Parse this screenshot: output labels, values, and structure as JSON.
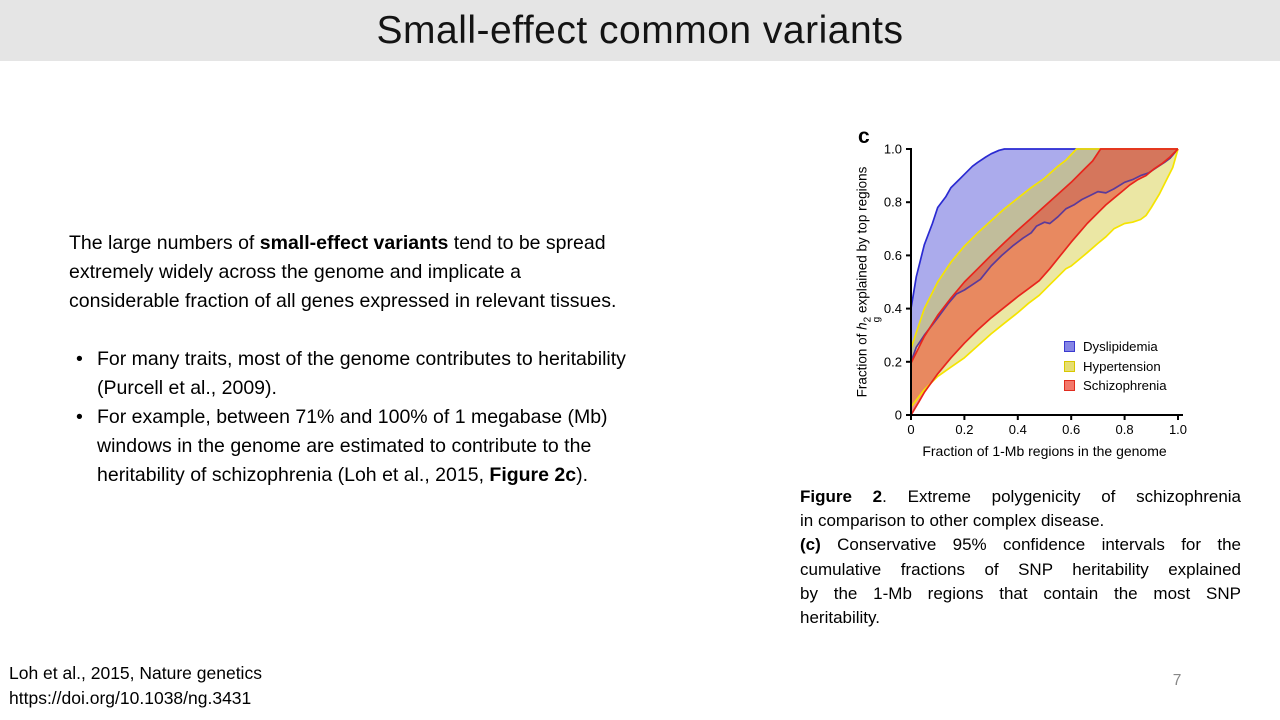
{
  "slide": {
    "title": "Small-effect common variants",
    "page_number": "7",
    "bullet_char": "•",
    "paragraph_lines": [
      [
        {
          "t": "The large numbers of "
        },
        {
          "t": "small-effect variants",
          "b": true
        },
        {
          "t": " tend to be spread"
        }
      ],
      [
        {
          "t": "extremely widely across the genome and implicate a"
        }
      ],
      [
        {
          "t": "considerable fraction of all genes expressed in relevant tissues."
        }
      ]
    ],
    "bullets": [
      {
        "lines": [
          [
            {
              "t": "For many traits, most of the genome contributes to heritability"
            }
          ],
          [
            {
              "t": "(Purcell et al., 2009)."
            }
          ]
        ]
      },
      {
        "lines": [
          [
            {
              "t": "For example, between 71% and 100% of 1 megabase (Mb)"
            }
          ],
          [
            {
              "t": "windows in the genome are estimated to contribute to the"
            }
          ],
          [
            {
              "t": "heritability of schizophrenia (Loh et al., 2015, "
            },
            {
              "t": "Figure 2c",
              "b": true
            },
            {
              "t": ")."
            }
          ]
        ]
      }
    ],
    "caption_lines": [
      {
        "justify": true,
        "segments": [
          {
            "t": "Figure 2",
            "b": true
          },
          {
            "t": ". Extreme polygenicity of schizophrenia"
          }
        ]
      },
      {
        "justify": false,
        "segments": [
          {
            "t": "in comparison to other complex disease."
          }
        ]
      },
      {
        "justify": true,
        "segments": [
          {
            "t": "(c)",
            "b": true
          },
          {
            "t": " Conservative 95% confidence intervals for the"
          }
        ]
      },
      {
        "justify": true,
        "segments": [
          {
            "t": "cumulative fractions of SNP heritability explained"
          }
        ]
      },
      {
        "justify": true,
        "segments": [
          {
            "t": "by the 1-Mb regions that contain the most SNP"
          }
        ]
      },
      {
        "justify": false,
        "segments": [
          {
            "t": "heritability."
          }
        ]
      }
    ],
    "citation_lines": [
      "Loh et al., 2015, Nature genetics",
      "https://doi.org/10.1038/ng.3431"
    ]
  },
  "chart_data": {
    "type": "area",
    "panel_label": "c",
    "title": "Conservative 95% confidence intervals for cumulative fractions of SNP heritability explained by top 1-Mb regions",
    "xlabel": "Fraction of 1-Mb regions in the genome",
    "ylabel_parts": {
      "prefix": "Fraction of ",
      "h": "h",
      "sup": "2",
      "sub": "g",
      "suffix": " explained by top regions"
    },
    "xlim": [
      0,
      1
    ],
    "ylim": [
      0,
      1
    ],
    "grid": false,
    "legend_position": "inside-right",
    "xtick_vals": [
      0,
      0.2,
      0.4,
      0.6,
      0.8,
      1.0
    ],
    "ytick_vals": [
      0,
      0.2,
      0.4,
      0.6,
      0.8,
      1.0
    ],
    "xticks": [
      "0",
      "0.2",
      "0.4",
      "0.6",
      "0.8",
      "1.0"
    ],
    "yticks": [
      "0",
      "0.2",
      "0.4",
      "0.6",
      "0.8",
      "1.0"
    ],
    "axis_color": "#000000",
    "legend": [
      {
        "label": "Dyslipidemia",
        "fill": "#8585e5",
        "border": "#3a3ad0"
      },
      {
        "label": "Hypertension",
        "fill": "#e6de72",
        "border": "#d8c800"
      },
      {
        "label": "Schizophrenia",
        "fill": "#f3786b",
        "border": "#e02c1e"
      }
    ],
    "bands": [
      {
        "name": "Dyslipidemia",
        "fill": "#6666dd",
        "opacity": 0.55,
        "line_upper": "#2a2ad2",
        "line_lower": "#5c3a99",
        "upper": [
          [
            0,
            0.4
          ],
          [
            0.02,
            0.52
          ],
          [
            0.05,
            0.64
          ],
          [
            0.08,
            0.72
          ],
          [
            0.1,
            0.78
          ],
          [
            0.13,
            0.82
          ],
          [
            0.15,
            0.855
          ],
          [
            0.18,
            0.885
          ],
          [
            0.2,
            0.905
          ],
          [
            0.23,
            0.935
          ],
          [
            0.25,
            0.95
          ],
          [
            0.28,
            0.97
          ],
          [
            0.3,
            0.982
          ],
          [
            0.33,
            0.995
          ],
          [
            0.35,
            1.0
          ],
          [
            1.0,
            1.0
          ]
        ],
        "lower": [
          [
            0,
            0.2
          ],
          [
            0.02,
            0.255
          ],
          [
            0.05,
            0.3
          ],
          [
            0.1,
            0.365
          ],
          [
            0.14,
            0.42
          ],
          [
            0.17,
            0.455
          ],
          [
            0.2,
            0.47
          ],
          [
            0.23,
            0.49
          ],
          [
            0.26,
            0.51
          ],
          [
            0.3,
            0.56
          ],
          [
            0.34,
            0.6
          ],
          [
            0.38,
            0.635
          ],
          [
            0.42,
            0.665
          ],
          [
            0.45,
            0.685
          ],
          [
            0.47,
            0.71
          ],
          [
            0.5,
            0.725
          ],
          [
            0.52,
            0.72
          ],
          [
            0.55,
            0.745
          ],
          [
            0.58,
            0.775
          ],
          [
            0.61,
            0.79
          ],
          [
            0.64,
            0.81
          ],
          [
            0.67,
            0.825
          ],
          [
            0.7,
            0.84
          ],
          [
            0.73,
            0.835
          ],
          [
            0.76,
            0.85
          ],
          [
            0.8,
            0.875
          ],
          [
            0.83,
            0.885
          ],
          [
            0.86,
            0.9
          ],
          [
            0.89,
            0.91
          ],
          [
            0.92,
            0.93
          ],
          [
            0.95,
            0.95
          ],
          [
            0.97,
            0.965
          ],
          [
            1.0,
            1.0
          ]
        ]
      },
      {
        "name": "Hypertension",
        "fill": "#d8cf4a",
        "opacity": 0.5,
        "line_upper": "#f5e400",
        "line_lower": "#f5e400",
        "upper": [
          [
            0,
            0.25
          ],
          [
            0.05,
            0.4
          ],
          [
            0.1,
            0.5
          ],
          [
            0.15,
            0.575
          ],
          [
            0.2,
            0.635
          ],
          [
            0.25,
            0.685
          ],
          [
            0.3,
            0.73
          ],
          [
            0.35,
            0.775
          ],
          [
            0.4,
            0.815
          ],
          [
            0.45,
            0.855
          ],
          [
            0.5,
            0.89
          ],
          [
            0.55,
            0.935
          ],
          [
            0.58,
            0.958
          ],
          [
            0.62,
            1.0
          ],
          [
            1.0,
            1.0
          ]
        ],
        "lower": [
          [
            0,
            0.03
          ],
          [
            0.05,
            0.095
          ],
          [
            0.1,
            0.145
          ],
          [
            0.15,
            0.18
          ],
          [
            0.2,
            0.215
          ],
          [
            0.25,
            0.26
          ],
          [
            0.3,
            0.305
          ],
          [
            0.35,
            0.345
          ],
          [
            0.4,
            0.385
          ],
          [
            0.44,
            0.42
          ],
          [
            0.48,
            0.45
          ],
          [
            0.52,
            0.49
          ],
          [
            0.55,
            0.52
          ],
          [
            0.58,
            0.55
          ],
          [
            0.6,
            0.56
          ],
          [
            0.63,
            0.585
          ],
          [
            0.66,
            0.61
          ],
          [
            0.7,
            0.645
          ],
          [
            0.73,
            0.67
          ],
          [
            0.76,
            0.7
          ],
          [
            0.8,
            0.72
          ],
          [
            0.83,
            0.725
          ],
          [
            0.86,
            0.735
          ],
          [
            0.88,
            0.75
          ],
          [
            0.9,
            0.78
          ],
          [
            0.93,
            0.83
          ],
          [
            0.96,
            0.89
          ],
          [
            0.98,
            0.93
          ],
          [
            1.0,
            1.0
          ]
        ]
      },
      {
        "name": "Schizophrenia",
        "fill": "#e63c28",
        "opacity": 0.55,
        "line_upper": "#e8251c",
        "line_lower": "#e8251c",
        "upper": [
          [
            0,
            0.195
          ],
          [
            0.05,
            0.295
          ],
          [
            0.1,
            0.375
          ],
          [
            0.15,
            0.44
          ],
          [
            0.2,
            0.5
          ],
          [
            0.25,
            0.55
          ],
          [
            0.3,
            0.6
          ],
          [
            0.35,
            0.648
          ],
          [
            0.4,
            0.695
          ],
          [
            0.45,
            0.74
          ],
          [
            0.5,
            0.785
          ],
          [
            0.55,
            0.83
          ],
          [
            0.6,
            0.875
          ],
          [
            0.65,
            0.925
          ],
          [
            0.68,
            0.955
          ],
          [
            0.71,
            1.0
          ],
          [
            1.0,
            1.0
          ]
        ],
        "lower": [
          [
            0,
            0.0
          ],
          [
            0.03,
            0.05
          ],
          [
            0.05,
            0.085
          ],
          [
            0.1,
            0.155
          ],
          [
            0.15,
            0.215
          ],
          [
            0.2,
            0.27
          ],
          [
            0.25,
            0.32
          ],
          [
            0.3,
            0.365
          ],
          [
            0.35,
            0.405
          ],
          [
            0.4,
            0.445
          ],
          [
            0.44,
            0.475
          ],
          [
            0.48,
            0.505
          ],
          [
            0.52,
            0.55
          ],
          [
            0.56,
            0.6
          ],
          [
            0.6,
            0.65
          ],
          [
            0.63,
            0.685
          ],
          [
            0.66,
            0.72
          ],
          [
            0.7,
            0.76
          ],
          [
            0.73,
            0.79
          ],
          [
            0.76,
            0.815
          ],
          [
            0.79,
            0.84
          ],
          [
            0.82,
            0.865
          ],
          [
            0.85,
            0.885
          ],
          [
            0.88,
            0.9
          ],
          [
            0.91,
            0.925
          ],
          [
            0.94,
            0.945
          ],
          [
            0.97,
            0.97
          ],
          [
            1.0,
            1.0
          ]
        ]
      }
    ]
  }
}
